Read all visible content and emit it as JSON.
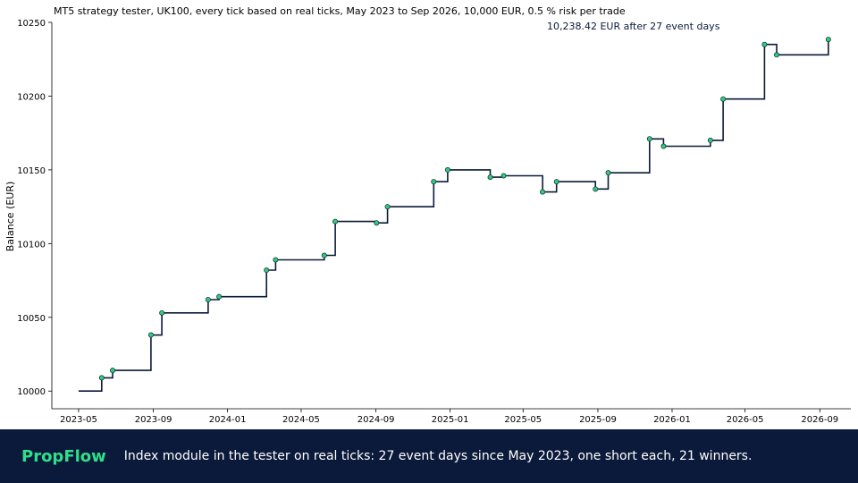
{
  "chart_data": {
    "type": "line",
    "step": true,
    "title": "MT5 strategy tester, UK100, every tick based on real ticks, May 2023 to Sep 2026, 10,000 EUR, 0.5 % risk per trade",
    "annotation": "10,238.42 EUR after 27 event days",
    "xlabel": "",
    "ylabel": "Balance (EUR)",
    "ylim": [
      9988,
      10250
    ],
    "yticks": [
      10000,
      10050,
      10100,
      10150,
      10200,
      10250
    ],
    "xticks": [
      "2023-05",
      "2023-09",
      "2024-01",
      "2024-05",
      "2024-09",
      "2025-01",
      "2025-05",
      "2025-09",
      "2026-01",
      "2026-05",
      "2026-09"
    ],
    "grid": false,
    "colors": {
      "line": "#0b1a3a",
      "marker_fill": "#2ecc8a",
      "marker_edge": "#1a3a2a"
    },
    "start": {
      "date": "2023-05-01",
      "balance": 10000
    },
    "points": [
      {
        "date": "2023-06-08",
        "balance": 10009
      },
      {
        "date": "2023-06-26",
        "balance": 10014
      },
      {
        "date": "2023-08-28",
        "balance": 10038
      },
      {
        "date": "2023-09-15",
        "balance": 10053
      },
      {
        "date": "2023-11-30",
        "balance": 10062
      },
      {
        "date": "2023-12-18",
        "balance": 10064
      },
      {
        "date": "2024-03-05",
        "balance": 10082
      },
      {
        "date": "2024-03-20",
        "balance": 10089
      },
      {
        "date": "2024-06-08",
        "balance": 10092
      },
      {
        "date": "2024-06-26",
        "balance": 10115
      },
      {
        "date": "2024-09-02",
        "balance": 10114
      },
      {
        "date": "2024-09-20",
        "balance": 10125
      },
      {
        "date": "2024-12-05",
        "balance": 10142
      },
      {
        "date": "2024-12-28",
        "balance": 10150
      },
      {
        "date": "2025-03-08",
        "balance": 10145
      },
      {
        "date": "2025-03-30",
        "balance": 10146
      },
      {
        "date": "2025-06-02",
        "balance": 10135
      },
      {
        "date": "2025-06-25",
        "balance": 10142
      },
      {
        "date": "2025-08-28",
        "balance": 10137
      },
      {
        "date": "2025-09-18",
        "balance": 10148
      },
      {
        "date": "2025-11-25",
        "balance": 10171
      },
      {
        "date": "2025-12-18",
        "balance": 10166
      },
      {
        "date": "2026-03-05",
        "balance": 10170
      },
      {
        "date": "2026-03-26",
        "balance": 10198
      },
      {
        "date": "2026-06-02",
        "balance": 10235
      },
      {
        "date": "2026-06-22",
        "balance": 10228
      },
      {
        "date": "2026-09-15",
        "balance": 10238.42
      }
    ]
  },
  "footer": {
    "brand": "PropFlow",
    "caption": "Index module in the tester on real ticks: 27 event days since May 2023, one short each, 21 winners."
  }
}
